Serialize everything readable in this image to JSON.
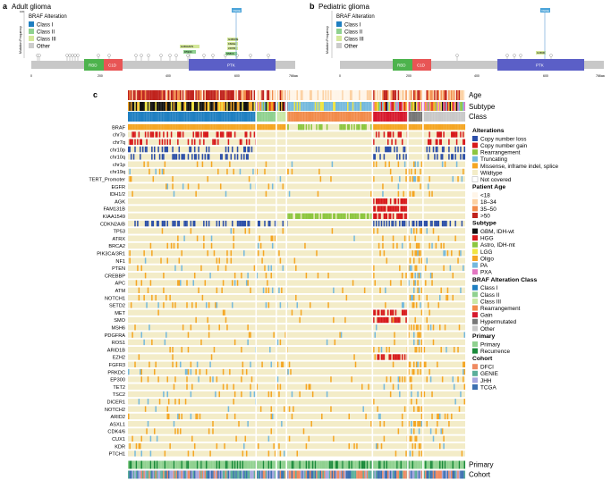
{
  "panel_a": {
    "letter": "a",
    "title": "Adult glioma",
    "yaxis": "Mutation Frequency",
    "ytop": "100",
    "legend_title": "BRAF Alteration",
    "legend": [
      "Class I",
      "Class II",
      "Class III",
      "Other"
    ],
    "domains": [
      "RBD",
      "C1D",
      "PTK"
    ],
    "ticks": [
      "0",
      "200",
      "400",
      "600"
    ],
    "aa_end": "766aa",
    "hotspot_label": "V600E",
    "box_labels": [
      "G469A/R/S",
      "D594N",
      "G466V/E",
      "K601E",
      "L597R",
      "N581S"
    ]
  },
  "panel_b": {
    "letter": "b",
    "title": "Pediatric glioma",
    "yaxis": "Mutation Frequency",
    "legend_title": "BRAF Alteration",
    "legend": [
      "Class I",
      "Class II",
      "Class III",
      "Other"
    ],
    "domains": [
      "RBD",
      "C1D",
      "PTK"
    ],
    "ticks": [
      "0",
      "200",
      "400",
      "600"
    ],
    "aa_end": "766aa",
    "hotspot_label": "V600E",
    "box_labels": [
      "G469R"
    ]
  },
  "panel_c": {
    "letter": "c",
    "top_tracks": [
      "Age",
      "Subtype",
      "Class"
    ],
    "genes": [
      "BRAF",
      "chr7p",
      "chr7q",
      "chr10p",
      "chr10q",
      "chr1p",
      "chr19q",
      "TERT_Promoter",
      "EGFR",
      "IDH1/2",
      "AGK",
      "FAM131B",
      "KIAA1549",
      "CDKN2A/B",
      "TP53",
      "ATRX",
      "BRCA2",
      "PIK3CA/3R1",
      "NF1",
      "PTEN",
      "CREBBP",
      "APC",
      "ATM",
      "NOTCH1",
      "SETD2",
      "MET",
      "SMO",
      "MSH6",
      "PDGFRA",
      "ROS1",
      "ARID1B",
      "EZH2",
      "FGFR3",
      "PRKDC",
      "EP300",
      "TET2",
      "TSC2",
      "DICER1",
      "NOTCH2",
      "ARID2",
      "ASXL1",
      "CDK4/6",
      "CUX1",
      "KDR",
      "PTCH1"
    ],
    "bottom_tracks": [
      "Primary",
      "Cohort"
    ],
    "legend_groups": [
      {
        "title": "Alterations",
        "items": [
          {
            "label": "Copy number loss",
            "color": "#2b4ea8"
          },
          {
            "label": "Copy number gain",
            "color": "#d7191c"
          },
          {
            "label": "Rearrangement",
            "color": "#8cc63f"
          },
          {
            "label": "Truncating",
            "color": "#74b9dd"
          },
          {
            "label": "Missense, inframe indel, splice",
            "color": "#f5a623"
          },
          {
            "label": "Wildtype",
            "color": "#f3ecc8"
          },
          {
            "label": "Not covered",
            "color": "#ffffff"
          }
        ]
      },
      {
        "title": "Patient Age",
        "items": [
          {
            "label": "<18",
            "color": "#fff5e8"
          },
          {
            "label": "18–34",
            "color": "#fcd0a1"
          },
          {
            "label": "35–50",
            "color": "#f28b4a"
          },
          {
            "label": ">50",
            "color": "#c0221c"
          }
        ]
      },
      {
        "title": "Subtype",
        "items": [
          {
            "label": "GBM, IDH-wt",
            "color": "#111111"
          },
          {
            "label": "HGG",
            "color": "#d7191c"
          },
          {
            "label": "Astro, IDH-mt",
            "color": "#8cc63f"
          },
          {
            "label": "LGG",
            "color": "#f0e442"
          },
          {
            "label": "Oligo",
            "color": "#f5a623"
          },
          {
            "label": "PA",
            "color": "#74b9dd"
          },
          {
            "label": "PXA",
            "color": "#e377c2"
          }
        ]
      },
      {
        "title": "BRAF Alteration Class",
        "items": [
          {
            "label": "Class I",
            "color": "#1f7fc1"
          },
          {
            "label": "Class II",
            "color": "#8fd18f"
          },
          {
            "label": "Class III",
            "color": "#c9e7a6"
          },
          {
            "label": "Rearrangement",
            "color": "#f28b4a"
          },
          {
            "label": "Gain",
            "color": "#d7192e"
          },
          {
            "label": "Hypermutated",
            "color": "#777777"
          },
          {
            "label": "Other",
            "color": "#c8c8c8"
          }
        ]
      },
      {
        "title": "Primary",
        "items": [
          {
            "label": "Primary",
            "color": "#8fd18f"
          },
          {
            "label": "Recurrence",
            "color": "#1a8a3a"
          }
        ]
      },
      {
        "title": "Cohort",
        "items": [
          {
            "label": "DFCI",
            "color": "#ef8a62"
          },
          {
            "label": "GENIE",
            "color": "#5aae9a"
          },
          {
            "label": "JHH",
            "color": "#a6a6df"
          },
          {
            "label": "TCGA",
            "color": "#3c6fb0"
          }
        ]
      }
    ]
  }
}
